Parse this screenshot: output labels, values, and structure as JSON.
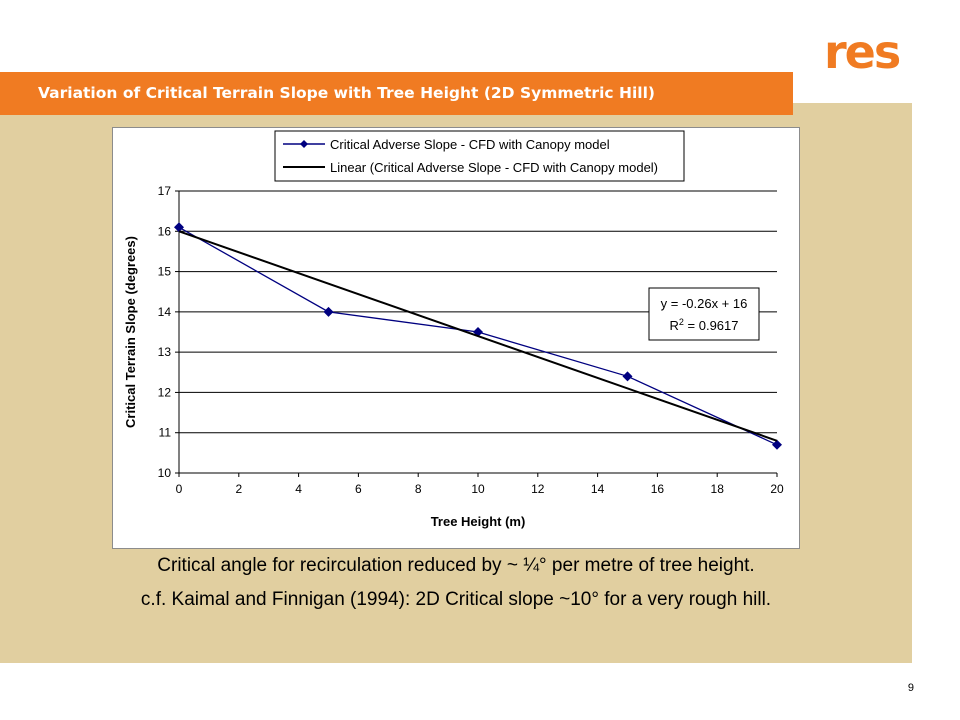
{
  "header": {
    "title": "Variation of Critical Terrain Slope with Tree Height (2D Symmetric Hill)",
    "logo_text": "res",
    "brand_color": "#f07b22",
    "panel_color": "#e1cfa0"
  },
  "chart_data": {
    "type": "line",
    "xlabel": "Tree Height (m)",
    "ylabel": "Critical Terrain Slope (degrees)",
    "xlim": [
      0,
      20
    ],
    "ylim": [
      10,
      17
    ],
    "xticks": [
      "0",
      "2",
      "4",
      "6",
      "8",
      "10",
      "12",
      "14",
      "16",
      "18",
      "20"
    ],
    "yticks": [
      "10",
      "11",
      "12",
      "13",
      "14",
      "15",
      "16",
      "17"
    ],
    "grid": "horizontal",
    "legend_position": "top",
    "series": [
      {
        "name": "Critical Adverse Slope - CFD with Canopy model",
        "color": "#000080",
        "marker": "diamond",
        "x": [
          0,
          5,
          10,
          15,
          20
        ],
        "y": [
          16.1,
          14.0,
          13.5,
          12.4,
          10.7
        ]
      },
      {
        "name": "Linear (Critical Adverse Slope - CFD with Canopy model)",
        "color": "#000000",
        "marker": "none",
        "x": [
          0,
          20
        ],
        "y": [
          16.0,
          10.8
        ]
      }
    ],
    "annotation": {
      "equation": "y = -0.26x + 16",
      "r_squared_prefix": "R",
      "r_squared_sup": "2",
      "r_squared_value": " = 0.9617"
    }
  },
  "captions": {
    "line1": "Critical angle for recirculation reduced by ~ ¼° per metre of tree height.",
    "line2": "c.f. Kaimal and Finnigan (1994): 2D Critical slope ~10° for a very rough hill."
  },
  "footer": {
    "page_number": "9"
  }
}
